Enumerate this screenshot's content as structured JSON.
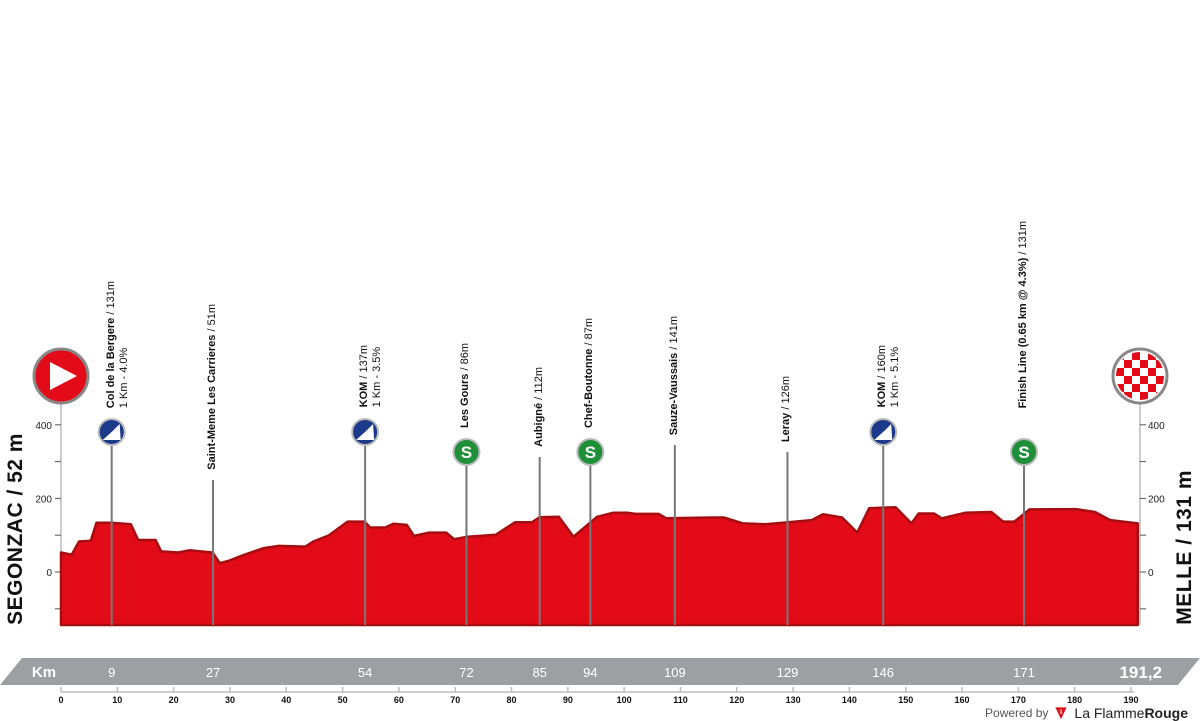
{
  "chart_data": {
    "type": "area",
    "xlabel": "Km",
    "xlim": [
      0,
      191.2
    ],
    "ylim": [
      -144,
      400
    ],
    "x_ticks": [
      0,
      10,
      20,
      30,
      40,
      50,
      60,
      70,
      80,
      90,
      100,
      110,
      120,
      130,
      140,
      150,
      160,
      170,
      180,
      190
    ],
    "y_ticks": [
      0,
      200,
      400
    ],
    "total_distance_label": "191,2",
    "start": {
      "label": "SEGONZAC / 52 m"
    },
    "finish": {
      "label": "MELLE / 131 m"
    },
    "profile": {
      "x": [
        0,
        1.9,
        3.2,
        5.3,
        6.3,
        9,
        12.4,
        13.7,
        16.8,
        17.8,
        20.8,
        22.8,
        26.9,
        28.2,
        29.9,
        32.6,
        36,
        38.7,
        43.4,
        44.8,
        47.5,
        50.9,
        53.9,
        54.9,
        57.6,
        59,
        61.4,
        62.7,
        65.4,
        68.4,
        69.8,
        72.2,
        77.2,
        80.6,
        83.6,
        85,
        88.4,
        91,
        93.8,
        95.2,
        98,
        100.7,
        102,
        106.1,
        107.5,
        115.6,
        117.7,
        121.1,
        125.1,
        129.2,
        133.3,
        135.3,
        138.7,
        141.4,
        143.5,
        148.2,
        151,
        152.3,
        155,
        156.4,
        160.5,
        165.2,
        167.3,
        169.3,
        172,
        180.2,
        183.6,
        186.3,
        191.2
      ],
      "y": [
        53,
        47,
        83,
        85,
        134,
        134,
        130,
        87,
        87,
        56,
        53,
        59,
        53,
        24,
        31,
        47,
        65,
        71,
        69,
        83,
        99,
        137,
        137,
        121,
        121,
        131,
        128,
        98,
        107,
        107,
        89,
        96,
        101,
        135,
        135,
        149,
        150,
        96,
        132,
        150,
        161,
        161,
        158,
        158,
        146,
        148,
        148,
        132,
        130,
        135,
        141,
        157,
        148,
        107,
        173,
        176,
        132,
        159,
        159,
        146,
        161,
        163,
        137,
        137,
        170,
        171,
        163,
        141,
        132
      ]
    },
    "points": [
      {
        "km": 9,
        "km_label": "9",
        "name": "Col de la Bergere",
        "elev": "131m",
        "sub": "1 Km - 4.0%",
        "icon": "kom"
      },
      {
        "km": 27,
        "km_label": "27",
        "name": "Saint-Meme Les Carrieres",
        "elev": "51m",
        "sub": "",
        "icon": ""
      },
      {
        "km": 54,
        "km_label": "54",
        "name": "KOM",
        "elev": "137m",
        "sub": "1 Km - 3.5%",
        "icon": "kom"
      },
      {
        "km": 72,
        "km_label": "72",
        "name": "Les Gours",
        "elev": "86m",
        "sub": "",
        "icon": "sprint"
      },
      {
        "km": 85,
        "km_label": "85",
        "name": "Aubigné",
        "elev": "112m",
        "sub": "",
        "icon": ""
      },
      {
        "km": 94,
        "km_label": "94",
        "name": "Chef-Boutonne",
        "elev": "87m",
        "sub": "",
        "icon": "sprint"
      },
      {
        "km": 109,
        "km_label": "109",
        "name": "Sauze-Vaussais",
        "elev": "141m",
        "sub": "",
        "icon": ""
      },
      {
        "km": 129,
        "km_label": "129",
        "name": "Leray",
        "elev": "126m",
        "sub": "",
        "icon": ""
      },
      {
        "km": 146,
        "km_label": "146",
        "name": "KOM",
        "elev": "160m",
        "sub": "1 Km - 5.1%",
        "icon": "kom"
      },
      {
        "km": 171,
        "km_label": "171",
        "name": "Finish Line (0.65 km @ 4.3%)",
        "elev": "131m",
        "sub": "",
        "icon": "sprint"
      }
    ],
    "colors": {
      "profile": "#e30b17",
      "profile_dark": "#a50d10",
      "band": "#9d9fa2",
      "kom": "#1d3a8a",
      "sprint": "#1f8f3a",
      "start": "#e30b17"
    }
  },
  "footer": {
    "powered_by": "Powered by",
    "brand_a": "La Flamme",
    "brand_b": "Rouge"
  }
}
